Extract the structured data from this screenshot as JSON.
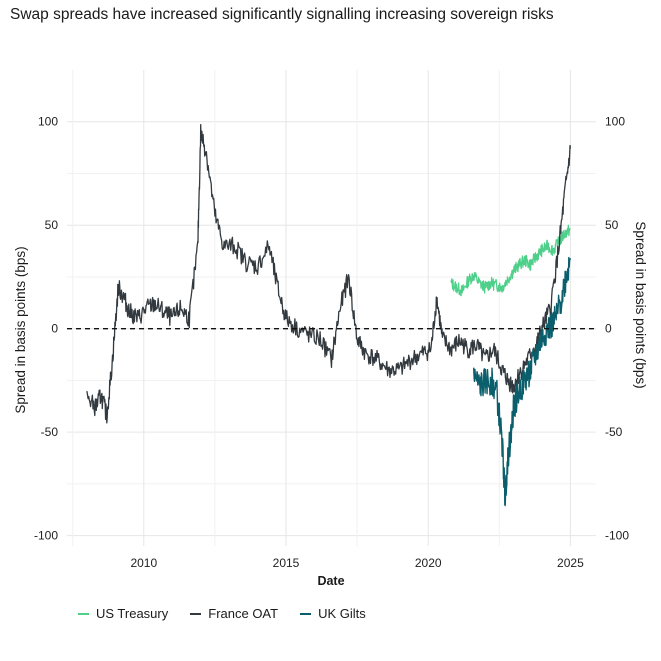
{
  "chart_data": {
    "type": "line",
    "title": "Swap spreads have increased significantly signalling increasing sovereign risks",
    "xlabel": "Date",
    "ylabel_left": "Spread in basis points (bps)",
    "ylabel_right": "Spread in basis points (bps)",
    "xlim": [
      2007.3,
      2025.9
    ],
    "ylim": [
      -105,
      125
    ],
    "x_ticks": [
      2010,
      2015,
      2020,
      2025
    ],
    "x_tick_labels": [
      "2010",
      "2015",
      "2020",
      "2025"
    ],
    "y_ticks": [
      -100,
      -50,
      0,
      50,
      100
    ],
    "y_tick_labels": [
      "-100",
      "-50",
      "0",
      "50",
      "100"
    ],
    "reference_line": {
      "y": 0,
      "style": "dashed"
    },
    "grid": true,
    "legend_position": "bottom-left",
    "series": [
      {
        "name": "US Treasury",
        "color": "#4ecf8a",
        "x": [
          2020.8,
          2021.0,
          2021.2,
          2021.4,
          2021.6,
          2021.8,
          2022.0,
          2022.2,
          2022.4,
          2022.6,
          2022.8,
          2023.0,
          2023.2,
          2023.4,
          2023.6,
          2023.8,
          2024.0,
          2024.2,
          2024.4,
          2024.6,
          2024.8,
          2025.0
        ],
        "y": [
          22,
          20,
          18,
          23,
          26,
          22,
          20,
          22,
          21,
          20,
          24,
          28,
          31,
          33,
          31,
          35,
          38,
          40,
          38,
          42,
          46,
          48
        ]
      },
      {
        "name": "France OAT",
        "color": "#333a3f",
        "x": [
          2008.0,
          2008.3,
          2008.5,
          2008.7,
          2008.9,
          2009.1,
          2009.3,
          2009.5,
          2009.8,
          2010.1,
          2010.4,
          2010.7,
          2011.0,
          2011.3,
          2011.6,
          2011.9,
          2012.0,
          2012.2,
          2012.5,
          2012.8,
          2013.2,
          2013.6,
          2014.0,
          2014.4,
          2014.7,
          2015.0,
          2015.4,
          2015.8,
          2016.2,
          2016.6,
          2016.9,
          2017.2,
          2017.5,
          2017.8,
          2018.2,
          2018.6,
          2019.0,
          2019.4,
          2019.8,
          2020.1,
          2020.3,
          2020.5,
          2020.8,
          2021.1,
          2021.4,
          2021.7,
          2022.0,
          2022.3,
          2022.6,
          2022.8,
          2023.0,
          2023.2,
          2023.5,
          2023.8,
          2024.0,
          2024.3,
          2024.6,
          2024.8,
          2025.0
        ],
        "y": [
          -33,
          -38,
          -32,
          -42,
          -15,
          20,
          15,
          8,
          5,
          10,
          12,
          8,
          5,
          10,
          5,
          40,
          95,
          85,
          55,
          40,
          40,
          32,
          30,
          40,
          20,
          5,
          0,
          -3,
          -5,
          -15,
          10,
          25,
          -5,
          -12,
          -15,
          -20,
          -20,
          -15,
          -12,
          -10,
          15,
          -5,
          -10,
          -6,
          -10,
          -8,
          -15,
          -10,
          -20,
          -25,
          -28,
          -22,
          -15,
          -8,
          0,
          10,
          40,
          65,
          87
        ]
      },
      {
        "name": "UK Gilts",
        "color": "#0b5f6c",
        "x": [
          2021.6,
          2021.8,
          2022.0,
          2022.2,
          2022.4,
          2022.6,
          2022.7,
          2022.8,
          2022.9,
          2023.0,
          2023.2,
          2023.4,
          2023.6,
          2023.8,
          2024.0,
          2024.2,
          2024.4,
          2024.6,
          2024.8,
          2025.0
        ],
        "y": [
          -22,
          -28,
          -26,
          -25,
          -30,
          -55,
          -82,
          -62,
          -52,
          -38,
          -30,
          -25,
          -20,
          -12,
          -5,
          0,
          2,
          10,
          22,
          34
        ]
      }
    ]
  }
}
